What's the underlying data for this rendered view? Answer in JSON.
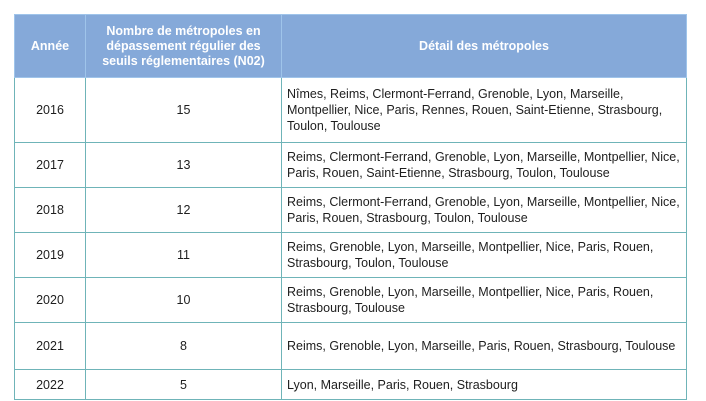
{
  "table": {
    "headers": {
      "year": "Année",
      "count": "Nombre de métropoles en dépassement régulier des seuils réglementaires (N02)",
      "detail": "Détail des métropoles"
    },
    "rows": [
      {
        "year": "2016",
        "count": "15",
        "detail": "Nîmes, Reims, Clermont-Ferrand, Grenoble, Lyon, Marseille, Montpellier, Nice, Paris, Rennes, Rouen, Saint-Etienne, Stras­bourg, Toulon, Toulouse"
      },
      {
        "year": "2017",
        "count": "13",
        "detail": "Reims, Clermont-Ferrand, Grenoble, Lyon, Marseille, Montpellier, Nice, Paris, Rouen, Saint-Etienne, Strasbourg, Toulon, Toulouse"
      },
      {
        "year": "2018",
        "count": "12",
        "detail": "Reims, Clermont-Ferrand, Grenoble, Lyon, Marseille, Montpellier, Nice, Paris, Rouen, Strasbourg, Toulon, Toulouse"
      },
      {
        "year": "2019",
        "count": "11",
        "detail": "Reims, Grenoble, Lyon, Marseille, Montpellier, Nice, Paris, Rouen, Strasbourg, Toulon, Toulouse"
      },
      {
        "year": "2020",
        "count": "10",
        "detail": "Reims, Grenoble, Lyon, Marseille, Montpellier, Nice, Paris, Rouen, Strasbourg, Toulouse"
      },
      {
        "year": "2021",
        "count": "8",
        "detail": "Reims, Grenoble, Lyon, Marseille, Paris, Rouen, Strasbourg, Toulouse"
      },
      {
        "year": "2022",
        "count": "5",
        "detail": "Lyon, Marseille, Paris, Rouen, Strasbourg"
      }
    ]
  },
  "colors": {
    "header_bg": "#85a9d9",
    "header_text": "#ffffff",
    "border": "#6fb4b8"
  }
}
